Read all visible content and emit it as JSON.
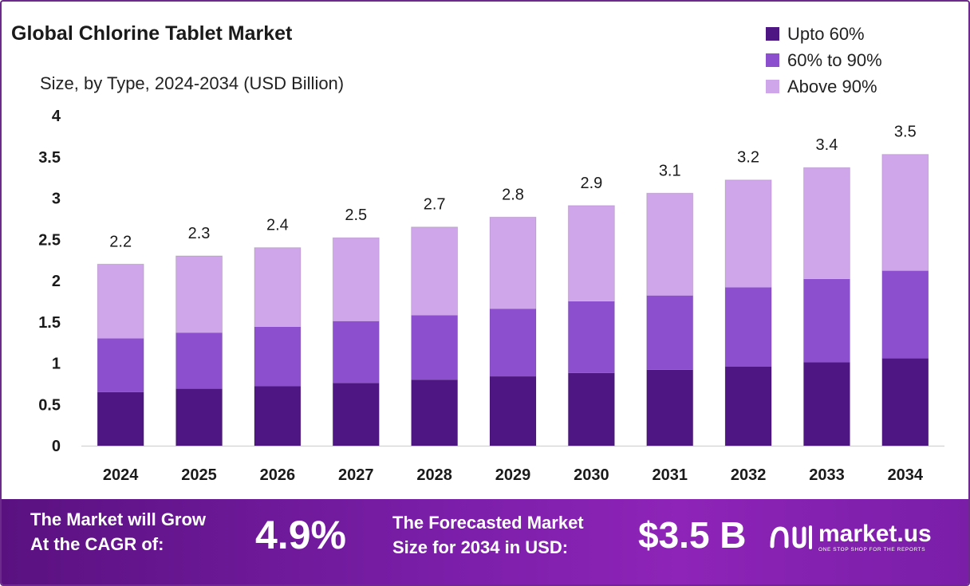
{
  "header": {
    "title": "Global Chlorine Tablet Market",
    "subtitle": "Size, by Type, 2024-2034 (USD Billion)"
  },
  "colors": {
    "upto60": "#4e1682",
    "p60to90": "#8c50cf",
    "above90": "#d0a6ea",
    "axis": "#cccccc"
  },
  "chart_data": {
    "type": "bar",
    "stacked": true,
    "categories": [
      "2024",
      "2025",
      "2026",
      "2027",
      "2028",
      "2029",
      "2030",
      "2031",
      "2032",
      "2033",
      "2034"
    ],
    "series": [
      {
        "name": "Upto 60%",
        "values": [
          0.65,
          0.69,
          0.72,
          0.76,
          0.8,
          0.84,
          0.88,
          0.92,
          0.96,
          1.01,
          1.06
        ]
      },
      {
        "name": "60% to 90%",
        "values": [
          0.65,
          0.68,
          0.72,
          0.75,
          0.78,
          0.82,
          0.87,
          0.9,
          0.96,
          1.01,
          1.06
        ]
      },
      {
        "name": "Above 90%",
        "values": [
          0.9,
          0.93,
          0.96,
          1.01,
          1.07,
          1.11,
          1.16,
          1.24,
          1.3,
          1.35,
          1.41
        ]
      }
    ],
    "totals": [
      2.2,
      2.3,
      2.4,
      2.5,
      2.7,
      2.8,
      2.9,
      3.1,
      3.2,
      3.4,
      3.5
    ],
    "yticks": [
      "0",
      "0.5",
      "1",
      "1.5",
      "2",
      "2.5",
      "3",
      "3.5",
      "4"
    ],
    "ylim": [
      0,
      4
    ],
    "title": "Global Chlorine Tablet Market",
    "xlabel": "",
    "ylabel": "Size, by Type, 2024-2034 (USD Billion)",
    "legend": "top-right"
  },
  "footer": {
    "cagr_line1": "The Market will Grow",
    "cagr_line2": "At the CAGR of:",
    "cagr_value": "4.9%",
    "forecast_line1": "The Forecasted Market",
    "forecast_line2": "Size for 2034 in USD:",
    "forecast_value": "$3.5 B",
    "brand_name": "market.us",
    "brand_tagline": "ONE STOP SHOP FOR THE REPORTS"
  }
}
